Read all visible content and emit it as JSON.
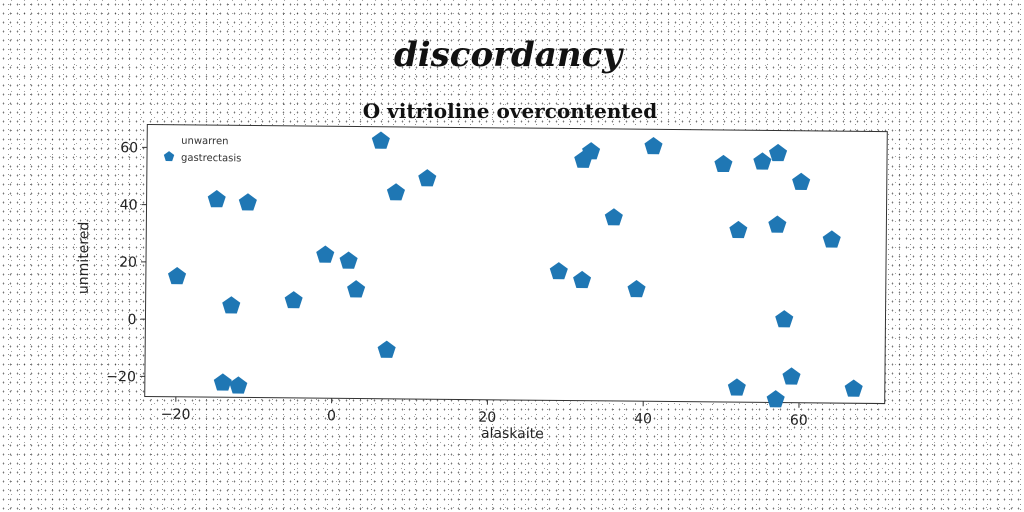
{
  "chart_data": {
    "type": "scatter",
    "suptitle": "discordancy",
    "title": "O vitrioline overcontented",
    "xlabel": "alaskaite",
    "ylabel": "unmitered",
    "xlim": [
      -24,
      71
    ],
    "ylim": [
      -27,
      68
    ],
    "xticks": [
      -20,
      0,
      20,
      40,
      60
    ],
    "yticks": [
      -20,
      0,
      20,
      40,
      60
    ],
    "grid": false,
    "legend": {
      "position": "top-left",
      "entries": [
        "unwarren",
        "gastrectasis"
      ]
    },
    "series": [
      {
        "name": "unwarren",
        "color": "#1f77b4",
        "marker": "none",
        "x": [],
        "y": []
      },
      {
        "name": "gastrectasis",
        "color": "#1f77b4",
        "marker": "pentagon",
        "x": [
          -20,
          -15,
          -11,
          -13,
          -14,
          -12,
          -5,
          -1,
          2,
          3,
          6,
          8,
          12,
          7,
          29,
          32,
          32,
          33,
          36,
          39,
          41,
          50,
          52,
          52,
          55,
          57,
          57,
          58,
          59,
          57,
          60,
          64,
          67
        ],
        "y": [
          15,
          42,
          41,
          5,
          -22,
          -23,
          7,
          23,
          21,
          11,
          63,
          45,
          50,
          -10,
          18,
          15,
          57,
          60,
          37,
          12,
          62,
          56,
          33,
          -22,
          57,
          35,
          60,
          2,
          -18,
          -26,
          50,
          30,
          -22
        ]
      }
    ]
  }
}
